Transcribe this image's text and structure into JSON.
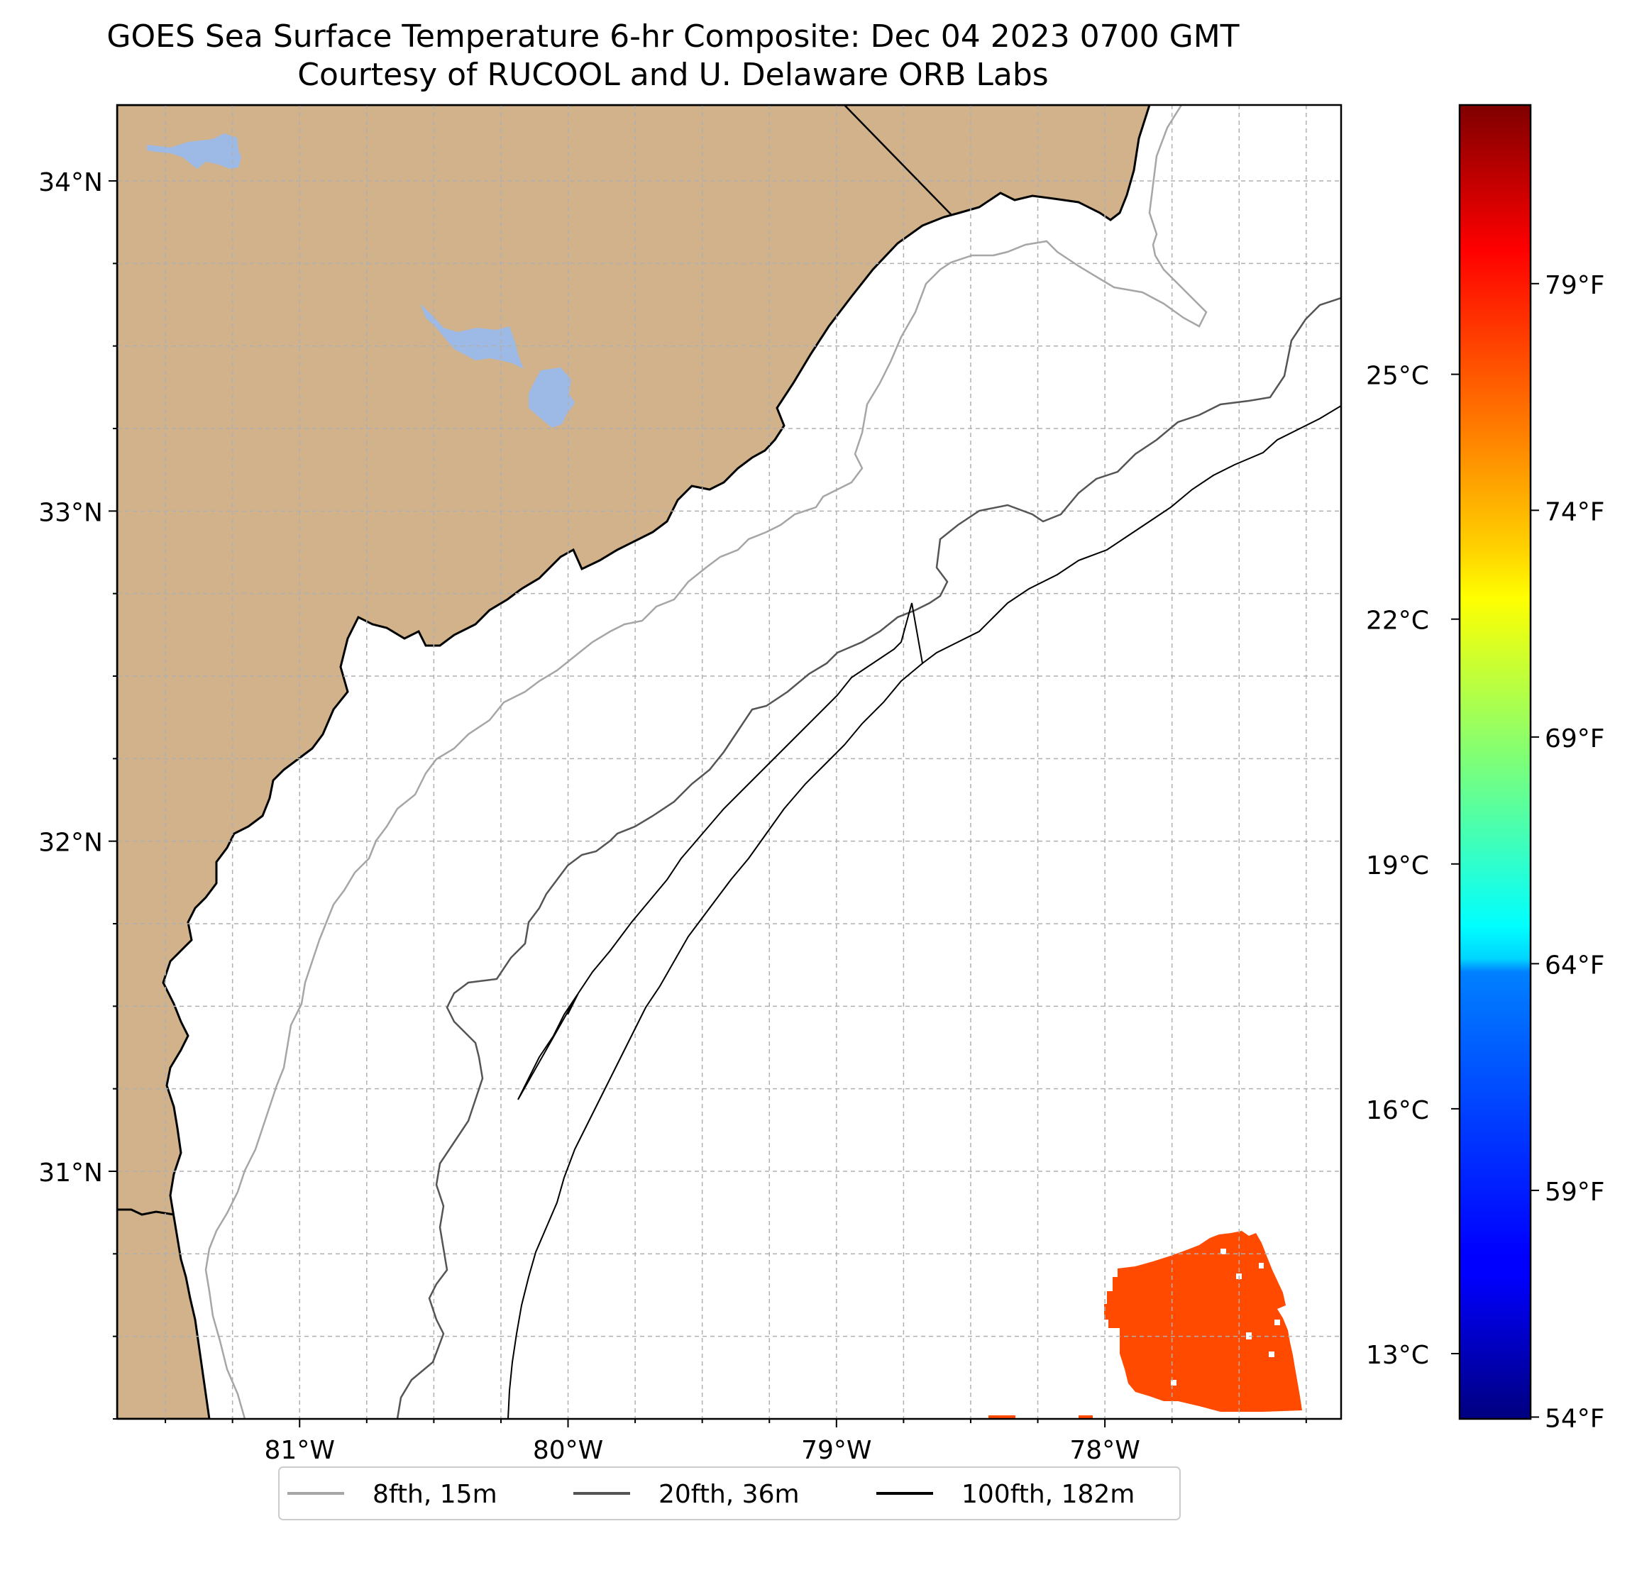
{
  "header": {
    "title": "GOES Sea Surface Temperature 6-hr Composite: Dec 04 2023 0700 GMT",
    "subtitle": "Courtesy of RUCOOL and U. Delaware ORB Labs"
  },
  "map": {
    "lon_range": [
      -81.68,
      -77.12
    ],
    "lat_range": [
      30.25,
      34.23
    ],
    "lat_ticks": [
      {
        "value": 34,
        "label": "34°N"
      },
      {
        "value": 33,
        "label": "33°N"
      },
      {
        "value": 32,
        "label": "32°N"
      },
      {
        "value": 31,
        "label": "31°N"
      }
    ],
    "lon_ticks": [
      {
        "value": -81,
        "label": "81°W"
      },
      {
        "value": -80,
        "label": "80°W"
      },
      {
        "value": -79,
        "label": "79°W"
      },
      {
        "value": -78,
        "label": "78°W"
      }
    ],
    "gridlines": true,
    "land_color": "#d1b28a",
    "water_body_color": "#9db9e5",
    "sst_patch_temp_f": 78
  },
  "legend": {
    "placement": "below-map",
    "items": [
      {
        "label": "8fth, 15m",
        "color": "#a6a6a6"
      },
      {
        "label": "20fth, 36m",
        "color": "#555555"
      },
      {
        "label": "100fth, 182m",
        "color": "#000000"
      }
    ]
  },
  "colorbar": {
    "colormap": "jet",
    "range_c": [
      12.2,
      28.3
    ],
    "celsius_ticks": [
      {
        "value": 13,
        "label": "13°C"
      },
      {
        "value": 16,
        "label": "16°C"
      },
      {
        "value": 19,
        "label": "19°C"
      },
      {
        "value": 22,
        "label": "22°C"
      },
      {
        "value": 25,
        "label": "25°C"
      }
    ],
    "fahrenheit_ticks": [
      {
        "value": 54,
        "label": "54°F"
      },
      {
        "value": 59,
        "label": "59°F"
      },
      {
        "value": 64,
        "label": "64°F"
      },
      {
        "value": 69,
        "label": "69°F"
      },
      {
        "value": 74,
        "label": "74°F"
      },
      {
        "value": 79,
        "label": "79°F"
      }
    ]
  }
}
